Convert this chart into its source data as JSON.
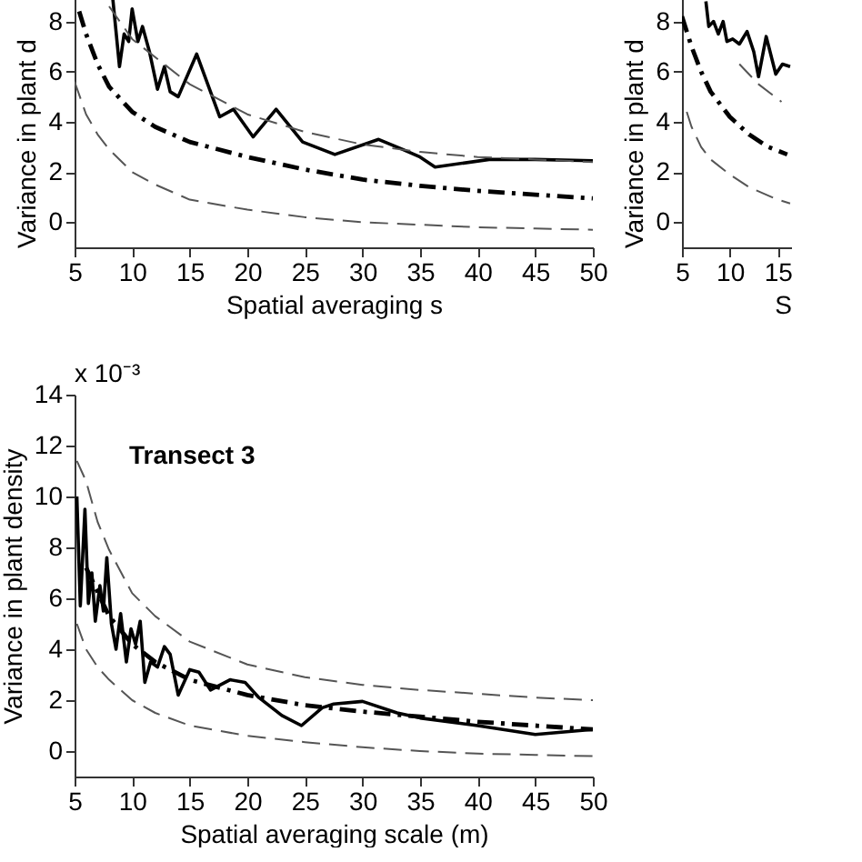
{
  "chart_data": [
    {
      "type": "line",
      "xlabel": "Spatial averaging s",
      "ylabel": "Variance in plant d",
      "xlim": [
        5,
        50
      ],
      "xticks": [
        5,
        10,
        15,
        20,
        25,
        30,
        35,
        40,
        45,
        50
      ],
      "ylim": [
        -1,
        9
      ],
      "yticks": [
        0,
        2,
        4,
        6,
        8
      ],
      "grid": false,
      "series": [
        {
          "type": "line",
          "color": "#000000",
          "line_style": "solid",
          "x": [
            8.3,
            8.9,
            9.3,
            9.7,
            10.0,
            10.5,
            10.9,
            11.5,
            12.2,
            12.8,
            13.3,
            14.0,
            15.6,
            17.6,
            18.8,
            20.5,
            22.5,
            24.8,
            27.6,
            31.4,
            33.5,
            35.0,
            36.3,
            41,
            45,
            50
          ],
          "values": [
            9.0,
            6.2,
            7.5,
            7.2,
            8.5,
            7.2,
            7.8,
            6.8,
            5.3,
            6.2,
            5.2,
            5.0,
            6.7,
            4.2,
            4.5,
            3.4,
            4.5,
            3.2,
            2.7,
            3.3,
            2.9,
            2.6,
            2.2,
            2.5,
            2.5,
            2.45
          ]
        },
        {
          "type": "line",
          "color": "#555555",
          "line_style": "dashed",
          "x": [
            8,
            10,
            15,
            20,
            25,
            30,
            35,
            40,
            45,
            50
          ],
          "values": [
            8.6,
            7.3,
            5.5,
            4.3,
            3.6,
            3.1,
            2.8,
            2.6,
            2.5,
            2.4
          ]
        },
        {
          "type": "line",
          "color": "#000000",
          "line_style": "dashdot",
          "x": [
            5.4,
            6,
            7,
            8,
            10,
            12,
            15,
            20,
            25,
            30,
            35,
            40,
            45,
            50
          ],
          "values": [
            8.4,
            7.5,
            6.3,
            5.4,
            4.4,
            3.8,
            3.2,
            2.6,
            2.1,
            1.7,
            1.45,
            1.25,
            1.1,
            0.95
          ]
        },
        {
          "type": "line",
          "color": "#555555",
          "line_style": "dashed",
          "x": [
            5,
            6,
            7,
            8,
            10,
            12,
            15,
            20,
            25,
            30,
            35,
            40,
            45,
            50
          ],
          "values": [
            5.6,
            4.3,
            3.5,
            2.9,
            2.0,
            1.5,
            0.9,
            0.5,
            0.2,
            0.0,
            -0.1,
            -0.2,
            -0.25,
            -0.3
          ]
        }
      ]
    },
    {
      "type": "line",
      "xlabel": "S",
      "ylabel": "Variance in plant d",
      "xlim": [
        5,
        16.4
      ],
      "xticks": [
        5,
        10,
        15
      ],
      "ylim": [
        -1,
        9
      ],
      "yticks": [
        0,
        2,
        4,
        6,
        8
      ],
      "grid": false,
      "series": [
        {
          "type": "line",
          "color": "#000000",
          "line_style": "solid",
          "x": [
            7.5,
            7.8,
            8.3,
            8.8,
            9.3,
            9.7,
            10.3,
            11,
            11.8,
            12.5,
            13,
            13.8,
            14.8,
            15.5,
            16.3
          ],
          "values": [
            8.8,
            7.8,
            8.0,
            7.5,
            8.0,
            7.2,
            7.3,
            7.1,
            7.6,
            6.8,
            5.8,
            7.4,
            5.9,
            6.3,
            6.2
          ]
        },
        {
          "type": "line",
          "color": "#555555",
          "line_style": "dashed",
          "x": [
            11,
            13,
            15.4
          ],
          "values": [
            6.3,
            5.5,
            4.8
          ]
        },
        {
          "type": "line",
          "color": "#000000",
          "line_style": "dashdot",
          "x": [
            5,
            6,
            7,
            8,
            10,
            12,
            14,
            16
          ],
          "values": [
            8.2,
            7.0,
            6.0,
            5.2,
            4.2,
            3.5,
            3.0,
            2.7
          ]
        },
        {
          "type": "line",
          "color": "#555555",
          "line_style": "dashed",
          "x": [
            5.5,
            6,
            7,
            8,
            10,
            12,
            15,
            16.3
          ],
          "values": [
            4.4,
            3.8,
            3.0,
            2.5,
            1.9,
            1.4,
            0.9,
            0.75
          ]
        }
      ]
    },
    {
      "type": "line",
      "title": "Transect 3",
      "xlabel": "Spatial averaging scale (m)",
      "ylabel": "Variance in plant density",
      "annotations": [
        "x 10⁻³"
      ],
      "xlim": [
        5,
        50
      ],
      "xticks": [
        5,
        10,
        15,
        20,
        25,
        30,
        35,
        40,
        45,
        50
      ],
      "ylim": [
        -1,
        14
      ],
      "yticks": [
        0,
        2,
        4,
        6,
        8,
        10,
        12,
        14
      ],
      "grid": false,
      "series": [
        {
          "type": "line",
          "color": "#000000",
          "line_style": "solid",
          "x": [
            5.2,
            5.5,
            5.9,
            6.2,
            6.5,
            6.8,
            7.2,
            7.5,
            7.8,
            8.2,
            8.6,
            9.0,
            9.5,
            9.9,
            10.3,
            10.7,
            11.1,
            11.6,
            12.2,
            12.8,
            13.3,
            14.0,
            15.0,
            15.8,
            16.8,
            18.5,
            19.8,
            21,
            23,
            24.7,
            26.5,
            27.5,
            30,
            33,
            35,
            40,
            45,
            50
          ],
          "values": [
            10,
            5.7,
            9.5,
            5.8,
            7.0,
            5.1,
            6.5,
            5.5,
            7.6,
            5.0,
            4.0,
            5.4,
            3.5,
            4.8,
            4.2,
            5.1,
            2.7,
            3.5,
            3.3,
            4.1,
            3.8,
            2.2,
            3.2,
            3.1,
            2.4,
            2.8,
            2.7,
            2.1,
            1.4,
            1.0,
            1.7,
            1.85,
            1.95,
            1.5,
            1.3,
            1.0,
            0.65,
            0.85
          ]
        },
        {
          "type": "line",
          "color": "#555555",
          "line_style": "dashed",
          "x": [
            5.2,
            6,
            7,
            8,
            10,
            12,
            15,
            20,
            25,
            30,
            35,
            40,
            45,
            50
          ],
          "values": [
            11.4,
            10.6,
            9.0,
            7.9,
            6.2,
            5.3,
            4.3,
            3.4,
            2.9,
            2.6,
            2.4,
            2.25,
            2.1,
            2.0
          ]
        },
        {
          "type": "line",
          "color": "#000000",
          "line_style": "dashdot",
          "x": [
            6,
            8,
            10,
            12,
            15,
            20,
            25,
            30,
            35,
            40,
            45,
            50
          ],
          "values": [
            7.2,
            5.3,
            4.2,
            3.5,
            2.8,
            2.2,
            1.8,
            1.55,
            1.35,
            1.15,
            1.0,
            0.85
          ]
        },
        {
          "type": "line",
          "color": "#555555",
          "line_style": "dashed",
          "x": [
            5.2,
            6,
            7,
            8,
            10,
            12,
            15,
            20,
            25,
            30,
            35,
            40,
            45,
            50
          ],
          "values": [
            5.0,
            4.0,
            3.3,
            2.8,
            2.0,
            1.5,
            1.0,
            0.6,
            0.35,
            0.15,
            0.0,
            -0.1,
            -0.15,
            -0.2
          ]
        }
      ]
    }
  ]
}
